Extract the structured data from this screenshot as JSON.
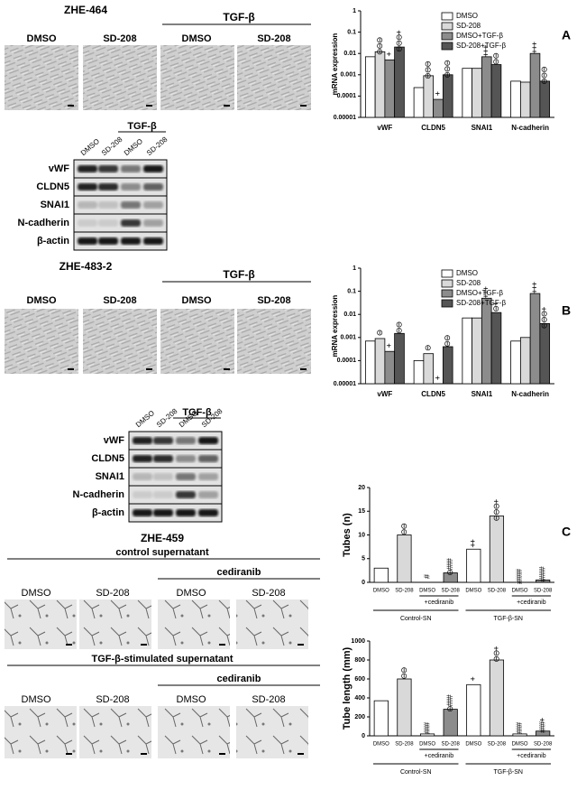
{
  "panel_labels": [
    "A",
    "B",
    "C"
  ],
  "zhe464": {
    "title": "ZHE-464",
    "treatment": "TGF-β",
    "conditions": [
      "DMSO",
      "SD-208",
      "DMSO",
      "SD-208"
    ],
    "blot": {
      "treatment": "TGF-β",
      "lanes": [
        "DMSO",
        "SD-208",
        "DMSO",
        "SD-208"
      ],
      "proteins": [
        "vWF",
        "CLDN5",
        "SNAI1",
        "N-cadherin",
        "β-actin"
      ]
    }
  },
  "zhe4832": {
    "title": "ZHE-483-2",
    "treatment": "TGF-β",
    "conditions": [
      "DMSO",
      "SD-208",
      "DMSO",
      "SD-208"
    ],
    "blot": {
      "treatment": "TGF-β",
      "lanes": [
        "DMSO",
        "SD-208",
        "DMSO",
        "SD-208"
      ],
      "proteins": [
        "vWF",
        "CLDN5",
        "SNAI1",
        "N-cadherin",
        "β-actin"
      ]
    }
  },
  "zhe459": {
    "title": "ZHE-459",
    "row1": {
      "title": "control supernatant",
      "treatment": "cediranib",
      "conditions": [
        "DMSO",
        "SD-208",
        "DMSO",
        "SD-208"
      ]
    },
    "row2": {
      "title": "TGF-β-stimulated supernatant",
      "treatment": "cediranib",
      "conditions": [
        "DMSO",
        "SD-208",
        "DMSO",
        "SD-208"
      ]
    }
  },
  "chart_data": [
    {
      "type": "bar",
      "log_scale": true,
      "ylabel": "mRNA expression",
      "legend": "top-right",
      "categories": [
        "vWF",
        "CLDN5",
        "SNAI1",
        "N-cadherin"
      ],
      "ylim": [
        1e-05,
        1
      ],
      "yticks": [
        1e-05,
        0.0001,
        0.001,
        0.01,
        0.1,
        1
      ],
      "series": [
        {
          "name": "DMSO",
          "color": "#ffffff",
          "values": [
            0.007,
            0.00025,
            0.002,
            0.0005
          ],
          "markers": [
            null,
            null,
            null,
            null
          ]
        },
        {
          "name": "SD-208",
          "color": "#d9d9d9",
          "values": [
            0.012,
            0.0009,
            0.002,
            0.00045
          ],
          "markers": [
            "⊖⊖⊖",
            "⊖⊖⊖",
            null,
            null
          ]
        },
        {
          "name": "DMSO+TGF-β",
          "color": "#8c8c8c",
          "values": [
            0.005,
            7e-05,
            0.007,
            0.01
          ],
          "markers": [
            "+",
            "+",
            "+++",
            "+++"
          ]
        },
        {
          "name": "SD-208+TGF-β",
          "color": "#555555",
          "values": [
            0.02,
            0.001,
            0.003,
            0.0005
          ],
          "markers": [
            "⊖⊖⊖+",
            "⊖⊖⊖",
            "⊖⊖",
            "⊖⊖⊖"
          ]
        }
      ]
    },
    {
      "type": "bar",
      "log_scale": true,
      "ylabel": "mRNA expression",
      "legend": "top-right",
      "categories": [
        "vWF",
        "CLDN5",
        "SNAI1",
        "N-cadherin"
      ],
      "ylim": [
        1e-05,
        1
      ],
      "yticks": [
        1e-05,
        0.0001,
        0.001,
        0.01,
        0.1,
        1
      ],
      "series": [
        {
          "name": "DMSO",
          "color": "#ffffff",
          "values": [
            0.0007,
            0.0001,
            0.007,
            0.0007
          ],
          "markers": [
            null,
            null,
            null,
            null
          ]
        },
        {
          "name": "SD-208",
          "color": "#d9d9d9",
          "values": [
            0.0009,
            0.0002,
            0.007,
            0.001
          ],
          "markers": [
            "⊖",
            "⊖",
            null,
            null
          ]
        },
        {
          "name": "DMSO+TGF-β",
          "color": "#8c8c8c",
          "values": [
            0.00025,
            null,
            0.05,
            0.08
          ],
          "markers": [
            "+",
            "+",
            "+++",
            "+++"
          ]
        },
        {
          "name": "SD-208+TGF-β",
          "color": "#555555",
          "values": [
            0.0015,
            0.0004,
            0.012,
            0.004
          ],
          "markers": [
            "⊖⊖",
            "⊖⊖",
            "⊖+",
            "⊖⊖⊖+"
          ]
        }
      ]
    },
    {
      "type": "bar",
      "ylabel": "Tubes (n)",
      "categories": [
        "DMSO",
        "SD-208",
        "DMSO",
        "SD-208",
        "DMSO",
        "SD-208",
        "DMSO",
        "SD-208"
      ],
      "values": [
        3,
        10,
        0,
        2,
        7,
        14,
        0,
        0.5
      ],
      "colors": [
        "#ffffff",
        "#d9d9d9",
        "#ffffff",
        "#8c8c8c",
        "#ffffff",
        "#d9d9d9",
        "#ffffff",
        "#8c8c8c"
      ],
      "markers": [
        null,
        "⊖⊖",
        "#",
        "⊖###",
        "++",
        "⊖⊖⊖+",
        "####",
        "####"
      ],
      "subgroups": [
        "+cediranib",
        "+cediranib"
      ],
      "groups": [
        "Control-SN",
        "TGF-β-SN"
      ],
      "ylim": [
        0,
        20
      ],
      "yticks": [
        0,
        5,
        10,
        15,
        20
      ]
    },
    {
      "type": "bar",
      "ylabel": "Tube length (mm)",
      "categories": [
        "DMSO",
        "SD-208",
        "DMSO",
        "SD-208",
        "DMSO",
        "SD-208",
        "DMSO",
        "SD-208"
      ],
      "values": [
        370,
        600,
        20,
        280,
        540,
        800,
        20,
        50
      ],
      "colors": [
        "#ffffff",
        "#d9d9d9",
        "#ffffff",
        "#8c8c8c",
        "#ffffff",
        "#d9d9d9",
        "#ffffff",
        "#8c8c8c"
      ],
      "markers": [
        null,
        "⊖⊖",
        "###",
        "⊖###",
        "+",
        "⊖⊖+",
        "###",
        "###+"
      ],
      "subgroups": [
        "+cediranib",
        "+cediranib"
      ],
      "groups": [
        "Control-SN",
        "TGF-β-SN"
      ],
      "ylim": [
        0,
        1000
      ],
      "yticks": [
        0,
        200,
        400,
        600,
        800,
        1000
      ]
    }
  ]
}
